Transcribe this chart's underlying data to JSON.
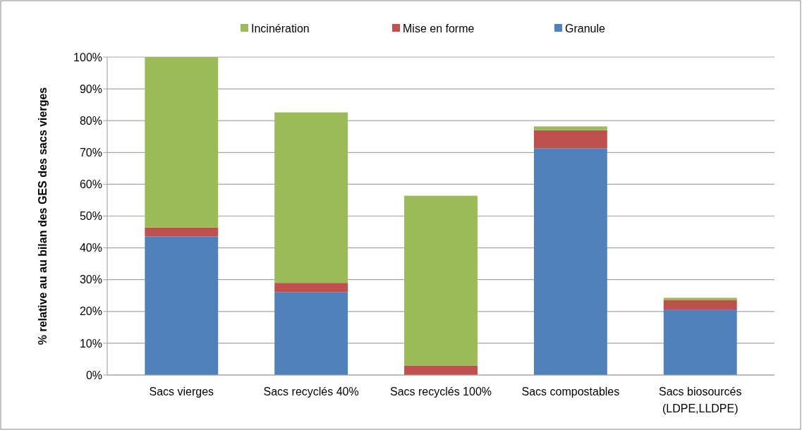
{
  "chart_data": {
    "type": "bar",
    "stacked": true,
    "ylabel": "% relative au au bilan des GES des sacs vierges",
    "categories": [
      "Sacs vierges",
      "Sacs recyclés 40%",
      "Sacs recyclés 100%",
      "Sacs compostables",
      "Sacs biosourcés\n(LDPE,LLDPE)"
    ],
    "series": [
      {
        "name": "Granule",
        "color": "#4f81bd",
        "values": [
          43.6,
          26.1,
          0,
          71.3,
          20.6
        ]
      },
      {
        "name": "Mise en forme",
        "color": "#c0504d",
        "values": [
          2.8,
          2.9,
          3.0,
          5.7,
          2.9
        ]
      },
      {
        "name": "Incinération",
        "color": "#9bbb59",
        "values": [
          53.6,
          53.6,
          53.4,
          1.2,
          0.8
        ]
      }
    ],
    "ylim": [
      0,
      100
    ],
    "yticks": [
      {
        "value": 0,
        "label": "0%"
      },
      {
        "value": 10,
        "label": "10%"
      },
      {
        "value": 20,
        "label": "20%"
      },
      {
        "value": 30,
        "label": "30%"
      },
      {
        "value": 40,
        "label": "40%"
      },
      {
        "value": 50,
        "label": "50%"
      },
      {
        "value": 60,
        "label": "60%"
      },
      {
        "value": 70,
        "label": "70%"
      },
      {
        "value": 80,
        "label": "80%"
      },
      {
        "value": 90,
        "label": "90%"
      },
      {
        "value": 100,
        "label": "100%"
      }
    ],
    "grid": "y",
    "legend": "top"
  }
}
